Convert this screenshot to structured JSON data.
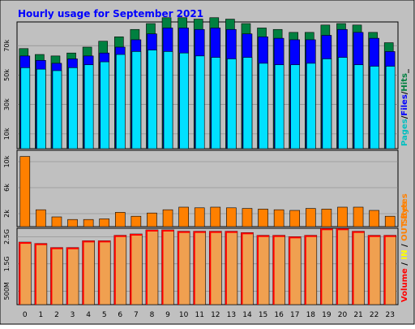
{
  "title": "Hourly usage for September 2021",
  "colors": {
    "background": "#c0c0c0",
    "plot_background": "#c0c0c0",
    "title": "#0000ff",
    "hits": "#008040",
    "files": "#0000ff",
    "pages": "#00e0ff",
    "sites": "#ff8000",
    "volume": "#ff0000",
    "in": "#ffff00",
    "out": "#ff8000",
    "kbytes_fill": "#f0a050",
    "grid": "#808080"
  },
  "legends": {
    "top": [
      {
        "text": "Pages",
        "color": "#00c0c0"
      },
      {
        "text": "/",
        "color": "#000000"
      },
      {
        "text": "Files",
        "color": "#0000ff"
      },
      {
        "text": "/",
        "color": "#000000"
      },
      {
        "text": "Hits",
        "color": "#008040"
      },
      {
        "text": "_",
        "color": "#000000"
      }
    ],
    "middle": [
      {
        "text": "Sites",
        "color": "#ff8000"
      }
    ],
    "bottom": [
      {
        "text": "Volume",
        "color": "#ff0000"
      },
      {
        "text": " / ",
        "color": "#000000"
      },
      {
        "text": "IN",
        "color": "#ffff00"
      },
      {
        "text": " / ",
        "color": "#000000"
      },
      {
        "text": "OUT",
        "color": "#ff8000"
      },
      {
        "text": " ",
        "color": "#000000"
      },
      {
        "text": "Bytes",
        "color": "#ff8000"
      }
    ]
  },
  "chart_data": [
    {
      "type": "bar",
      "panel": "hits-files-pages",
      "categories": [
        "0",
        "1",
        "2",
        "3",
        "4",
        "5",
        "6",
        "7",
        "8",
        "9",
        "10",
        "11",
        "12",
        "13",
        "14",
        "15",
        "16",
        "17",
        "18",
        "19",
        "20",
        "21",
        "22",
        "23"
      ],
      "yticks": [
        "10k",
        "30k",
        "50k",
        "70k"
      ],
      "ytick_values": [
        10000,
        30000,
        50000,
        70000
      ],
      "ylim": [
        0,
        85000
      ],
      "series": [
        {
          "name": "Hits",
          "values": [
            68000,
            64000,
            63000,
            65000,
            69000,
            73000,
            76000,
            81000,
            85000,
            89000,
            89000,
            88000,
            89000,
            88000,
            85000,
            82000,
            81000,
            79000,
            79000,
            84000,
            85000,
            84000,
            79000,
            72000
          ]
        },
        {
          "name": "Files",
          "values": [
            63000,
            60000,
            58000,
            61000,
            63000,
            65000,
            69000,
            74000,
            78000,
            82000,
            82000,
            81000,
            82000,
            81000,
            78000,
            76000,
            75000,
            74000,
            74000,
            77000,
            81000,
            79000,
            75000,
            66000
          ]
        },
        {
          "name": "Pages",
          "values": [
            55000,
            54000,
            53000,
            55000,
            57000,
            59000,
            64000,
            66000,
            67000,
            66000,
            65000,
            63000,
            62000,
            61000,
            62000,
            58000,
            57000,
            57000,
            58000,
            61000,
            62000,
            57000,
            56000,
            56000
          ]
        }
      ]
    },
    {
      "type": "bar",
      "panel": "sites",
      "categories": [
        "0",
        "1",
        "2",
        "3",
        "4",
        "5",
        "6",
        "7",
        "8",
        "9",
        "10",
        "11",
        "12",
        "13",
        "14",
        "15",
        "16",
        "17",
        "18",
        "19",
        "20",
        "21",
        "22",
        "23"
      ],
      "yticks": [
        "2k",
        "6k",
        "10k"
      ],
      "ytick_values": [
        2000,
        6000,
        10000
      ],
      "ylim": [
        0,
        11500
      ],
      "series": [
        {
          "name": "Sites",
          "values": [
            10800,
            2600,
            1500,
            1100,
            1100,
            1200,
            2200,
            1600,
            2100,
            2600,
            3000,
            2900,
            3000,
            2900,
            2800,
            2700,
            2600,
            2500,
            2800,
            2700,
            3000,
            3000,
            2500,
            1600
          ]
        }
      ]
    },
    {
      "type": "bar",
      "panel": "volume",
      "categories": [
        "0",
        "1",
        "2",
        "3",
        "4",
        "5",
        "6",
        "7",
        "8",
        "9",
        "10",
        "11",
        "12",
        "13",
        "14",
        "15",
        "16",
        "17",
        "18",
        "19",
        "20",
        "21",
        "22",
        "23"
      ],
      "yticks": [
        "500M",
        "1.5G",
        "2.5G"
      ],
      "ytick_values": [
        0.5,
        1.5,
        2.5
      ],
      "ylim": [
        0,
        2.75
      ],
      "series": [
        {
          "name": "Volume",
          "values": [
            2.3,
            2.25,
            2.1,
            2.1,
            2.35,
            2.35,
            2.55,
            2.6,
            2.75,
            2.75,
            2.7,
            2.7,
            2.7,
            2.7,
            2.65,
            2.55,
            2.55,
            2.5,
            2.55,
            2.8,
            2.8,
            2.7,
            2.55,
            2.55
          ]
        }
      ]
    }
  ]
}
